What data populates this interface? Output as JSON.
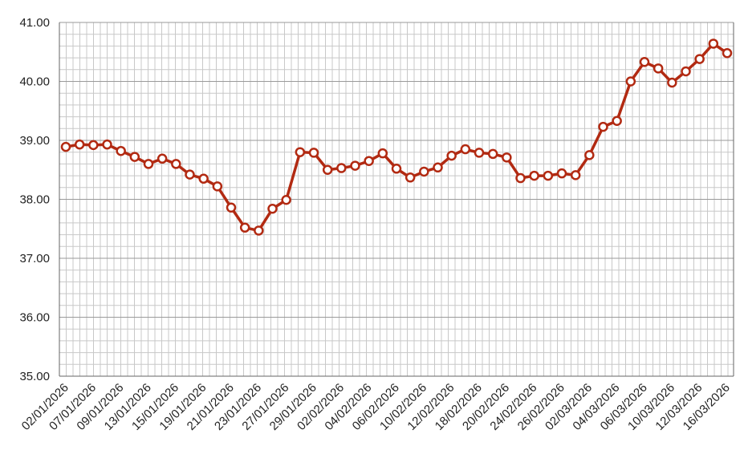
{
  "chart_data": {
    "type": "line",
    "title": "",
    "xlabel": "",
    "ylabel": "",
    "ylim": [
      35,
      41
    ],
    "y_ticks": [
      "35.00",
      "36.00",
      "37.00",
      "38.00",
      "39.00",
      "40.00",
      "41.00"
    ],
    "x_tick_labels": [
      "02/01/2026",
      "07/01/2026",
      "09/01/2026",
      "13/01/2026",
      "15/01/2026",
      "19/01/2026",
      "21/01/2026",
      "23/01/2026",
      "27/01/2026",
      "29/01/2026",
      "02/02/2026",
      "04/02/2026",
      "06/02/2026",
      "10/02/2026",
      "12/02/2026",
      "18/02/2026",
      "20/02/2026",
      "24/02/2026",
      "26/02/2026",
      "02/03/2026",
      "04/03/2026",
      "06/03/2026",
      "10/03/2026",
      "12/03/2026",
      "16/03/2026"
    ],
    "grid": true,
    "colors": {
      "line": "#b22a12",
      "marker_fill": "#ffffff",
      "grid": "#c8c8c8",
      "axis": "#666666"
    },
    "series": [
      {
        "values": [
          38.89,
          38.93,
          38.92,
          38.93,
          38.82,
          38.72,
          38.6,
          38.69,
          38.6,
          38.42,
          38.35,
          38.22,
          37.86,
          37.52,
          37.47,
          37.84,
          37.99,
          38.8,
          38.79,
          38.5,
          38.53,
          38.57,
          38.65,
          38.78,
          38.52,
          38.37,
          38.47,
          38.54,
          38.74,
          38.85,
          38.79,
          38.77,
          38.71,
          38.36,
          38.4,
          38.4,
          38.44,
          38.41,
          38.75,
          39.23,
          39.33,
          40.0,
          40.33,
          40.22,
          39.98,
          40.17,
          40.38,
          40.64,
          40.48
        ]
      }
    ]
  }
}
